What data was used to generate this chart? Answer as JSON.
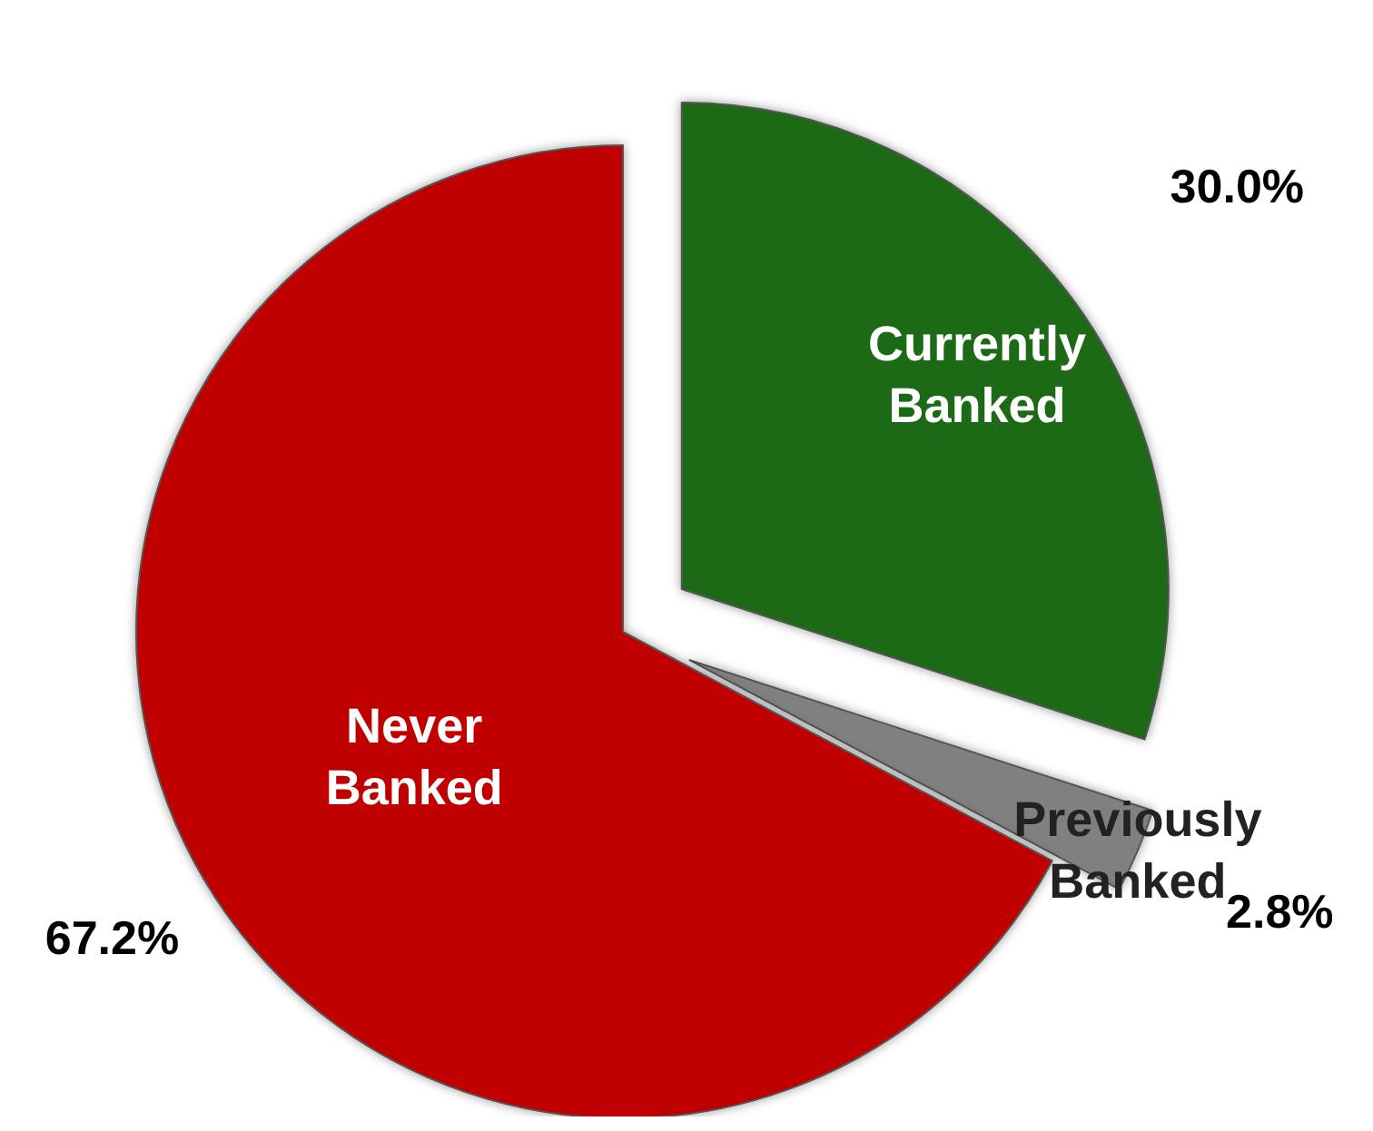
{
  "chart_data": {
    "type": "pie",
    "categories": [
      "Currently Banked",
      "Previously Banked",
      "Never Banked"
    ],
    "values": [
      30.0,
      2.8,
      67.2
    ],
    "colors": [
      "#1e6b14",
      "#808080",
      "#c00000"
    ],
    "value_labels": [
      "30.0%",
      "2.8%",
      "67.2%"
    ],
    "legend": false
  }
}
